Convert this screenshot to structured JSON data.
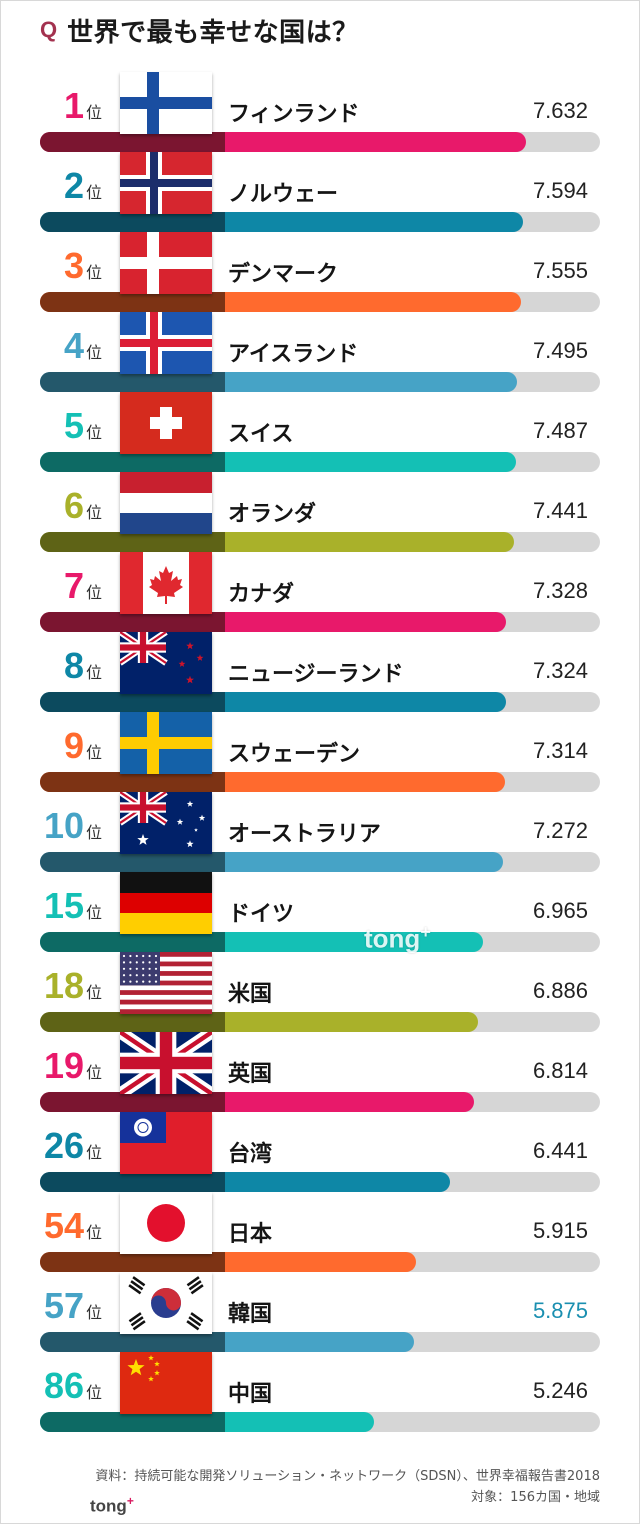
{
  "title": {
    "mark": "Q",
    "text": "世界で最も幸せな国は？"
  },
  "chart_data": {
    "type": "bar",
    "orientation": "horizontal",
    "title": "世界で最も幸せな国は？",
    "rank_suffix": "位",
    "categories": [
      "フィンランド",
      "ノルウェー",
      "デンマーク",
      "アイスランド",
      "スイス",
      "オランダ",
      "カナダ",
      "ニュージーランド",
      "スウェーデン",
      "オーストラリア",
      "ドイツ",
      "米国",
      "英国",
      "台湾",
      "日本",
      "韓国",
      "中国"
    ],
    "ranks": [
      "1",
      "2",
      "3",
      "4",
      "5",
      "6",
      "7",
      "8",
      "9",
      "10",
      "15",
      "18",
      "19",
      "26",
      "54",
      "57",
      "86"
    ],
    "values": [
      7.632,
      7.594,
      7.555,
      7.495,
      7.487,
      7.441,
      7.328,
      7.324,
      7.314,
      7.272,
      6.965,
      6.886,
      6.814,
      6.441,
      5.915,
      5.875,
      5.246
    ],
    "value_labels": [
      "7.632",
      "7.594",
      "7.555",
      "7.495",
      "7.487",
      "7.441",
      "7.328",
      "7.324",
      "7.314",
      "7.272",
      "6.965",
      "6.886",
      "6.814",
      "6.441",
      "5.915",
      "5.875",
      "5.246"
    ],
    "flags": [
      "finland-flag",
      "norway-flag",
      "denmark-flag",
      "iceland-flag",
      "switzerland-flag",
      "netherlands-flag",
      "canada-flag",
      "new-zealand-flag",
      "sweden-flag",
      "australia-flag",
      "germany-flag",
      "usa-flag",
      "uk-flag",
      "taiwan-flag",
      "japan-flag",
      "korea-flag",
      "china-flag"
    ],
    "palette": [
      {
        "main": "#e8196a",
        "dark": "#7b1530"
      },
      {
        "main": "#0e87a6",
        "dark": "#0c4a5e"
      },
      {
        "main": "#ff6a2e",
        "dark": "#7d3314"
      },
      {
        "main": "#46a3c6",
        "dark": "#24586b"
      },
      {
        "main": "#14c0b5",
        "dark": "#0d6a64"
      },
      {
        "main": "#a9b12a",
        "dark": "#5e6316"
      }
    ],
    "value_label_colors": [
      "#222222",
      "#222222",
      "#222222",
      "#222222",
      "#222222",
      "#222222",
      "#222222",
      "#222222",
      "#222222",
      "#222222",
      "#222222",
      "#222222",
      "#222222",
      "#222222",
      "#222222",
      "#1a8fb0",
      "#222222"
    ],
    "xlim": [
      0,
      8.8
    ]
  },
  "watermark": {
    "text": "tong",
    "plus": "+"
  },
  "source": {
    "line1": "資料：持続可能な開発ソリューション・ネットワーク（SDSN）、世界幸福報告書2018",
    "line2": "対象：156カ国・地域"
  },
  "logo": {
    "text": "tong",
    "plus": "+"
  }
}
